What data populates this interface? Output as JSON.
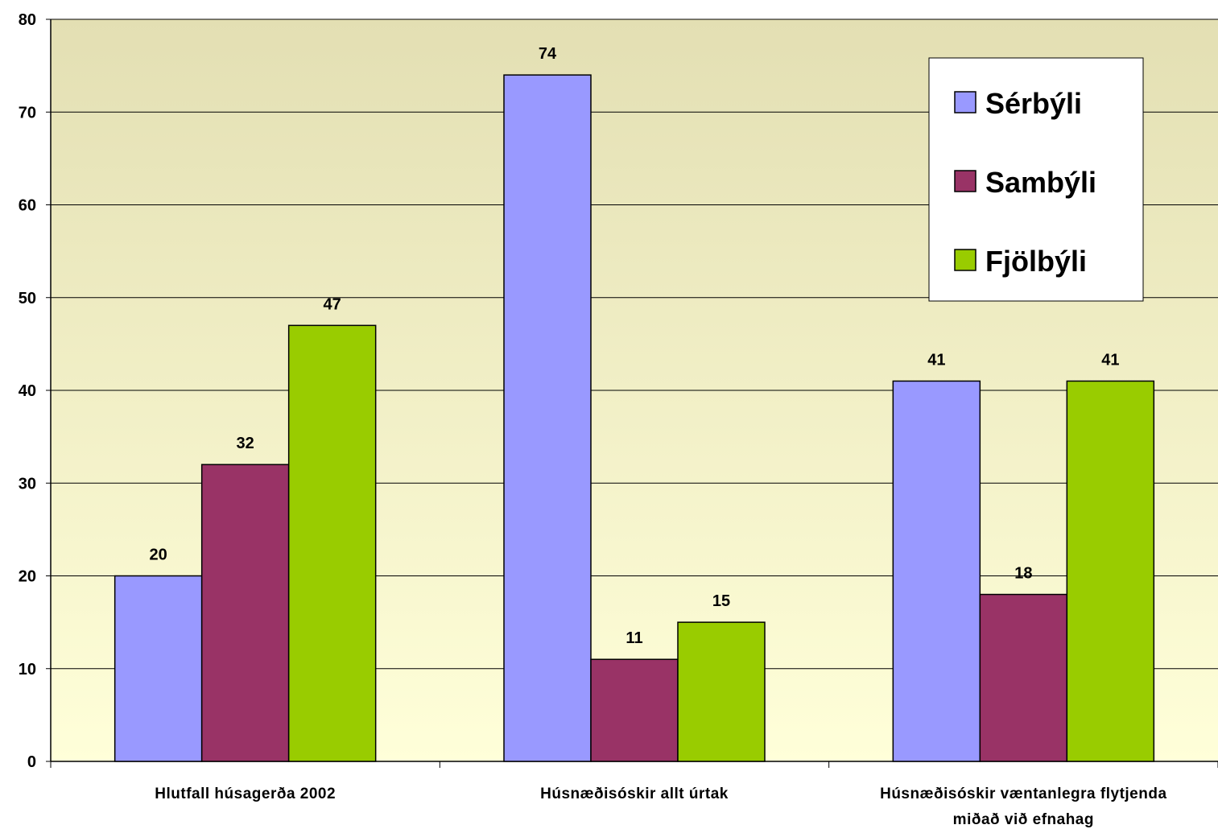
{
  "chart_data": {
    "type": "bar",
    "categories": [
      [
        "Hlutfall húsagerða 2002"
      ],
      [
        "Húsnæðisóskir allt úrtak"
      ],
      [
        "Húsnæðisóskir væntanlegra flytjenda",
        "miðað við efnahag"
      ]
    ],
    "series": [
      {
        "name": "Sérbýli",
        "values": [
          20,
          74,
          41
        ],
        "color": "#9999FF"
      },
      {
        "name": "Sambýli",
        "values": [
          32,
          11,
          18
        ],
        "color": "#993366"
      },
      {
        "name": "Fjölbýli",
        "values": [
          47,
          15,
          41
        ],
        "color": "#99CC00"
      }
    ],
    "ylim": [
      0,
      80
    ],
    "yticks": [
      0,
      10,
      20,
      30,
      40,
      50,
      60,
      70,
      80
    ],
    "grid": true,
    "legend_position": "top-right",
    "plot_background": [
      "#E3DFB3",
      "#FFFFD9"
    ]
  }
}
